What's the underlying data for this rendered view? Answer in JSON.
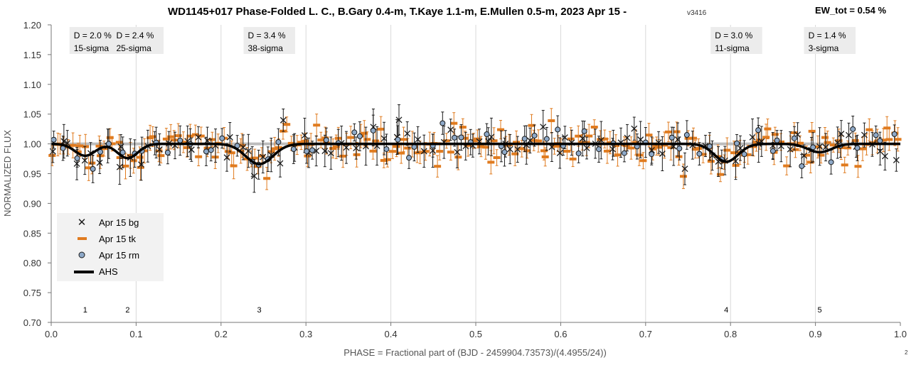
{
  "chart_data": {
    "type": "scatter",
    "title": "WD1145+017 Phase-Folded L. C., B.Gary 0.4-m, T.Kaye 1.1-m, E.Mullen 0.5-m, 2023 Apr 15 -",
    "title_version": "v3416",
    "ew_label": "EW_tot = 0.54 %",
    "xlabel": "PHASE = Fractional part of (BJD - 2459904.73573)/(4.4955/24))",
    "ylabel": "NORMALIZED FLUX",
    "xlim": [
      0.0,
      1.0
    ],
    "ylim": [
      0.7,
      1.2
    ],
    "x_ticks": [
      "0.0",
      "0.1",
      "0.2",
      "0.3",
      "0.4",
      "0.5",
      "0.6",
      "0.7",
      "0.8",
      "0.9",
      "1.0"
    ],
    "y_ticks": [
      "1.20",
      "1.15",
      "1.10",
      "1.05",
      "1.00",
      "0.95",
      "0.90",
      "0.85",
      "0.80",
      "0.75",
      "0.70"
    ],
    "grid": "vertical",
    "legend_position": "lower-left",
    "reference_level": 1.0,
    "dips": [
      {
        "number": "1",
        "phase": 0.04,
        "depth_label": "D = 2.0 %",
        "sigma_label": "15-sigma",
        "depth": 0.02,
        "width": 0.012
      },
      {
        "number": "2",
        "phase": 0.09,
        "depth_label": "D = 2.4 %",
        "sigma_label": "25-sigma",
        "depth": 0.024,
        "width": 0.012
      },
      {
        "number": "3",
        "phase": 0.245,
        "depth_label": "D = 3.4 %",
        "sigma_label": "38-sigma",
        "depth": 0.034,
        "width": 0.016
      },
      {
        "number": "4",
        "phase": 0.795,
        "depth_label": "D = 3.0 %",
        "sigma_label": "11-sigma",
        "depth": 0.03,
        "width": 0.014
      },
      {
        "number": "5",
        "phase": 0.905,
        "depth_label": "D = 1.4 %",
        "sigma_label": "3-sigma",
        "depth": 0.014,
        "width": 0.014
      }
    ],
    "series": [
      {
        "name": "Apr 15 bg",
        "marker": "x",
        "color": "#1a1a1a",
        "error": 0.025,
        "n": 110,
        "seed": 11,
        "scatter": 0.022
      },
      {
        "name": "Apr 15 tk",
        "marker": "dash",
        "color": "#e07b1f",
        "error": 0.017,
        "n": 210,
        "seed": 23,
        "scatter": 0.025
      },
      {
        "name": "Apr 15 rm",
        "marker": "circle",
        "color": "#8ea9c8",
        "error": 0.02,
        "n": 75,
        "seed": 37,
        "scatter": 0.022
      },
      {
        "name": "AHS",
        "marker": "line",
        "color": "#000000"
      }
    ],
    "page_number": "2"
  }
}
